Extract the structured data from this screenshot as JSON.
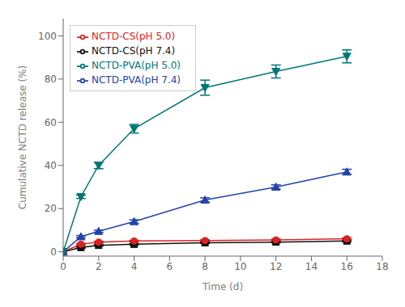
{
  "chart_data": {
    "type": "line",
    "xlabel": "Time (d)",
    "ylabel": "Cumulative NCTD release (%)",
    "x": [
      0,
      1,
      2,
      4,
      8,
      12,
      16
    ],
    "xlim": [
      0,
      18
    ],
    "ylim": [
      -2,
      108
    ],
    "xticks": [
      0,
      2,
      4,
      6,
      8,
      10,
      12,
      14,
      16,
      18
    ],
    "yticks": [
      0,
      20,
      40,
      60,
      80,
      100
    ],
    "grid": false,
    "legend": "upper left",
    "series": [
      {
        "name": "NCTD-CS(pH 7.4)",
        "color": "#111111",
        "marker": "square",
        "values": [
          0,
          2.0,
          3.0,
          3.5,
          4.2,
          4.5,
          5.0
        ],
        "error": [
          0,
          0.3,
          0.3,
          0.3,
          0.3,
          0.3,
          0.4
        ]
      },
      {
        "name": "NCTD-CS(pH 5.0)",
        "color": "#dd2222",
        "marker": "circle",
        "values": [
          0,
          3.5,
          4.5,
          5.0,
          5.2,
          5.5,
          6.0
        ],
        "error": [
          0,
          0.4,
          0.4,
          0.3,
          0.3,
          0.4,
          0.4
        ]
      },
      {
        "name": "NCTD-PVA(pH 7.4)",
        "color": "#2244aa",
        "marker": "triangle-up",
        "values": [
          0,
          7.0,
          9.5,
          14.0,
          24.0,
          30.0,
          37.0
        ],
        "error": [
          0,
          0.5,
          0.5,
          0.8,
          1.0,
          1.0,
          1.2
        ]
      },
      {
        "name": "NCTD-PVA(pH 5.0)",
        "color": "#007777",
        "marker": "triangle-down",
        "values": [
          0,
          25.5,
          40.0,
          57.0,
          76.0,
          83.5,
          90.5
        ],
        "error": [
          0,
          0.8,
          1.5,
          2.0,
          3.5,
          3.0,
          3.0
        ]
      }
    ]
  }
}
